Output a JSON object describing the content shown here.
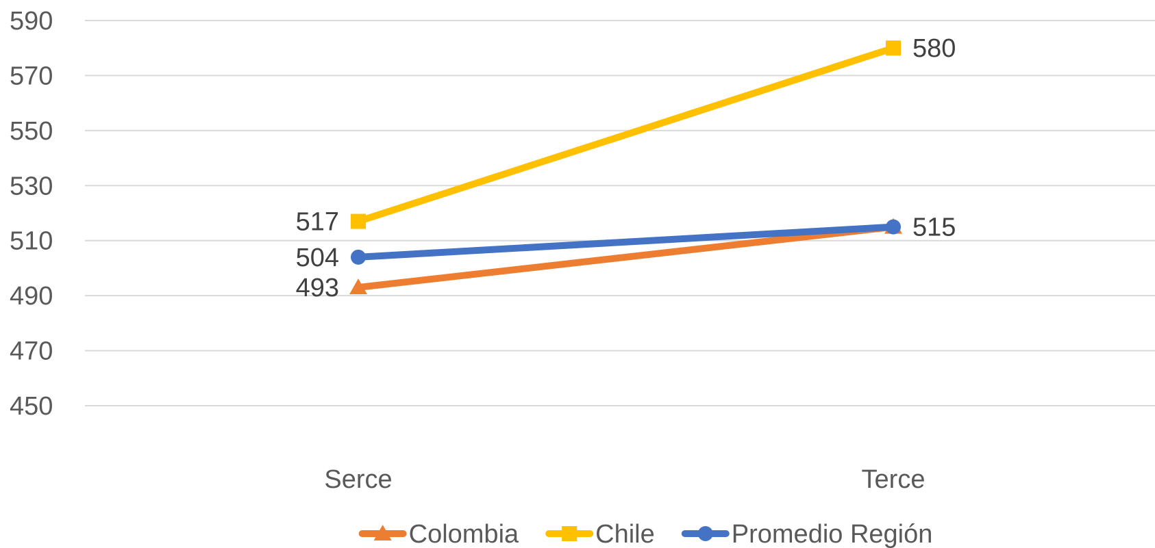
{
  "chart_data": {
    "type": "line",
    "title": "",
    "xlabel": "",
    "ylabel": "",
    "categories": [
      "Serce",
      "Terce"
    ],
    "ylim": [
      450,
      590
    ],
    "yticks": [
      450,
      470,
      490,
      510,
      530,
      550,
      570,
      590
    ],
    "grid": true,
    "legend_position": "bottom",
    "series": [
      {
        "name": "Colombia",
        "values": [
          493,
          515
        ],
        "color": "#ED7D31",
        "marker": "triangle",
        "data_labels": [
          "493",
          ""
        ]
      },
      {
        "name": "Chile",
        "values": [
          517,
          580
        ],
        "color": "#FFC000",
        "marker": "square",
        "data_labels": [
          "517",
          "580"
        ]
      },
      {
        "name": "Promedio Región",
        "values": [
          504,
          515
        ],
        "color": "#4472C4",
        "marker": "circle",
        "data_labels": [
          "504",
          "515"
        ]
      }
    ]
  }
}
